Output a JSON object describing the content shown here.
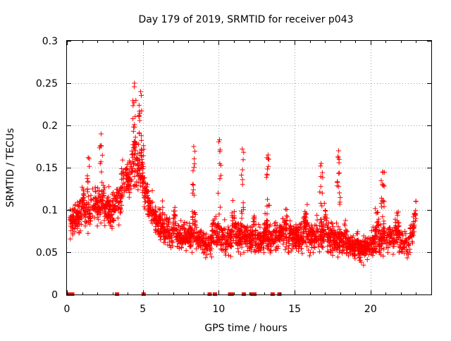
{
  "chart_data": {
    "type": "scatter",
    "title": "Day 179 of 2019, SRMTID for receiver p043",
    "xlabel": "GPS time / hours",
    "ylabel": "SRMTID / TECUs",
    "xlim": [
      0,
      24
    ],
    "ylim": [
      0,
      0.3
    ],
    "x_ticks": [
      0,
      5,
      10,
      15,
      20
    ],
    "x_tick_labels": [
      "0",
      "5",
      "10",
      "15",
      "20"
    ],
    "y_ticks": [
      0,
      0.05,
      0.1,
      0.15,
      0.2,
      0.25,
      0.3
    ],
    "y_tick_labels": [
      "0",
      "0.05",
      "0.1",
      "0.15",
      "0.2",
      "0.25",
      "0.3"
    ],
    "grid": true,
    "marker": "+",
    "color": "#ff0000",
    "envelope": {
      "x": [
        0.2,
        0.5,
        1,
        1.5,
        2,
        2.5,
        3,
        3.5,
        4,
        4.5,
        5,
        5.5,
        6,
        6.5,
        7,
        7.5,
        8,
        8.5,
        9,
        9.5,
        10,
        10.5,
        11,
        11.5,
        12,
        12.5,
        13,
        13.5,
        14,
        14.5,
        15,
        15.5,
        16,
        16.5,
        17,
        17.5,
        18,
        18.5,
        19,
        19.5,
        20,
        20.5,
        21,
        21.5,
        22,
        22.5,
        23
      ],
      "center": [
        0.085,
        0.09,
        0.095,
        0.1,
        0.105,
        0.1,
        0.1,
        0.11,
        0.14,
        0.16,
        0.135,
        0.1,
        0.085,
        0.075,
        0.07,
        0.068,
        0.07,
        0.066,
        0.062,
        0.06,
        0.07,
        0.065,
        0.07,
        0.066,
        0.068,
        0.064,
        0.066,
        0.066,
        0.075,
        0.07,
        0.066,
        0.068,
        0.068,
        0.07,
        0.072,
        0.065,
        0.062,
        0.06,
        0.055,
        0.052,
        0.06,
        0.062,
        0.07,
        0.066,
        0.062,
        0.058,
        0.09
      ],
      "spread": [
        0.03,
        0.035,
        0.035,
        0.035,
        0.035,
        0.035,
        0.035,
        0.035,
        0.045,
        0.05,
        0.045,
        0.035,
        0.03,
        0.03,
        0.025,
        0.025,
        0.025,
        0.025,
        0.025,
        0.025,
        0.03,
        0.03,
        0.028,
        0.028,
        0.028,
        0.028,
        0.028,
        0.028,
        0.03,
        0.03,
        0.028,
        0.028,
        0.028,
        0.03,
        0.03,
        0.028,
        0.028,
        0.026,
        0.024,
        0.024,
        0.026,
        0.03,
        0.03,
        0.028,
        0.028,
        0.028,
        0.03
      ]
    },
    "peaks": [
      {
        "x": 4.45,
        "y": 0.25
      },
      {
        "x": 4.85,
        "y": 0.24
      },
      {
        "x": 2.25,
        "y": 0.19
      },
      {
        "x": 10.05,
        "y": 0.183
      },
      {
        "x": 17.9,
        "y": 0.17
      },
      {
        "x": 13.25,
        "y": 0.165
      },
      {
        "x": 8.35,
        "y": 0.175
      },
      {
        "x": 16.75,
        "y": 0.155
      },
      {
        "x": 20.8,
        "y": 0.145
      },
      {
        "x": 11.55,
        "y": 0.172
      },
      {
        "x": 1.4,
        "y": 0.162
      }
    ],
    "zero_points_x": [
      0.1,
      0.35,
      3.3,
      5.05,
      9.4,
      9.75,
      10.75,
      10.85,
      11.65,
      12.2,
      12.35,
      13.55,
      14.0
    ],
    "point_count": 2600
  }
}
